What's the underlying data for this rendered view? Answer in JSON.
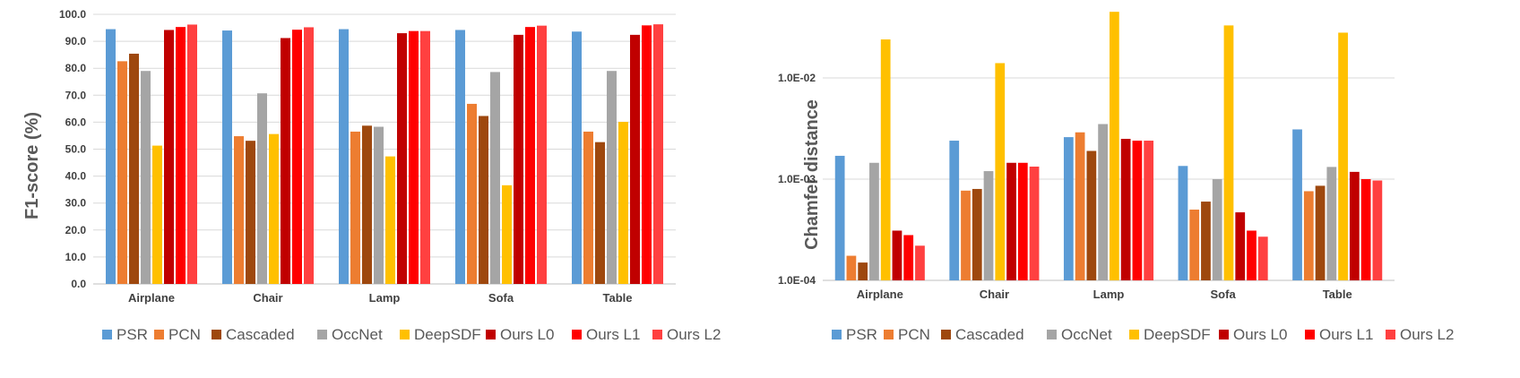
{
  "chart_data": [
    {
      "type": "bar",
      "ylabel": "F1-score (%)",
      "ylim": [
        0,
        100
      ],
      "yticks": [
        "0.0",
        "10.0",
        "20.0",
        "30.0",
        "40.0",
        "50.0",
        "60.0",
        "70.0",
        "80.0",
        "90.0",
        "100.0"
      ],
      "grid": true,
      "legend_position": "bottom",
      "categories": [
        "Airplane",
        "Chair",
        "Lamp",
        "Sofa",
        "Table"
      ],
      "series": [
        {
          "name": "PSR",
          "color": "#5b9bd5",
          "values": [
            94.5,
            94.0,
            94.5,
            94.2,
            93.6
          ]
        },
        {
          "name": "PCN",
          "color": "#ed7d31",
          "values": [
            82.6,
            54.8,
            56.5,
            66.8,
            56.5
          ]
        },
        {
          "name": "Cascaded",
          "color": "#9e480e",
          "values": [
            85.4,
            53.1,
            58.7,
            62.3,
            52.6
          ]
        },
        {
          "name": "OccNet",
          "color": "#a5a5a5",
          "values": [
            79.0,
            70.7,
            58.3,
            78.6,
            79.0
          ]
        },
        {
          "name": "DeepSDF",
          "color": "#ffc000",
          "values": [
            51.3,
            55.6,
            47.3,
            36.6,
            60.1
          ]
        },
        {
          "name": "Ours L0",
          "color": "#c00000",
          "values": [
            94.2,
            91.2,
            93.0,
            92.4,
            92.4
          ]
        },
        {
          "name": "Ours L1",
          "color": "#ff0000",
          "values": [
            95.3,
            94.3,
            93.8,
            95.3,
            95.9
          ]
        },
        {
          "name": "Ours L2",
          "color": "#ff4040",
          "values": [
            96.2,
            95.2,
            93.8,
            95.8,
            96.3
          ]
        }
      ]
    },
    {
      "type": "bar",
      "ylabel": "Chamfer distance",
      "yscale": "log",
      "ylim": [
        0.0001,
        0.05
      ],
      "yticks": [
        "1.0E-04",
        "1.0E-03",
        "1.0E-02"
      ],
      "grid": true,
      "legend_position": "bottom",
      "categories": [
        "Airplane",
        "Chair",
        "Lamp",
        "Sofa",
        "Table"
      ],
      "series": [
        {
          "name": "PSR",
          "color": "#5b9bd5",
          "values": [
            0.0017,
            0.0024,
            0.0026,
            0.00135,
            0.0031
          ]
        },
        {
          "name": "PCN",
          "color": "#ed7d31",
          "values": [
            0.000175,
            0.00077,
            0.0029,
            0.0005,
            0.00076
          ]
        },
        {
          "name": "Cascaded",
          "color": "#9e480e",
          "values": [
            0.00015,
            0.0008,
            0.0019,
            0.0006,
            0.00086
          ]
        },
        {
          "name": "OccNet",
          "color": "#a5a5a5",
          "values": [
            0.00145,
            0.0012,
            0.0035,
            0.001,
            0.00132
          ]
        },
        {
          "name": "DeepSDF",
          "color": "#ffc000",
          "values": [
            0.024,
            0.014,
            0.045,
            0.033,
            0.028
          ]
        },
        {
          "name": "Ours L0",
          "color": "#c00000",
          "values": [
            0.00031,
            0.00145,
            0.0025,
            0.00047,
            0.00118
          ]
        },
        {
          "name": "Ours L1",
          "color": "#ff0000",
          "values": [
            0.00028,
            0.00145,
            0.0024,
            0.00031,
            0.001
          ]
        },
        {
          "name": "Ours L2",
          "color": "#ff4040",
          "values": [
            0.00022,
            0.00133,
            0.0024,
            0.00027,
            0.00097
          ]
        }
      ]
    }
  ]
}
